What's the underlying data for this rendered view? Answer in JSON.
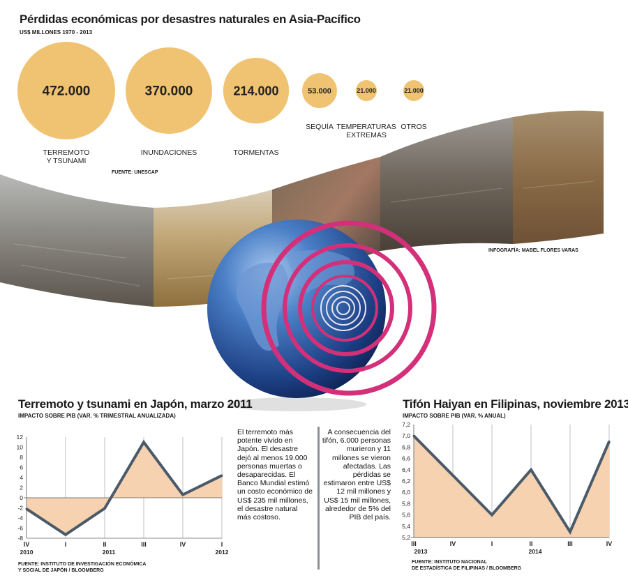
{
  "header": {
    "title": "Pérdidas económicas por desastres naturales en Asia-Pacífico",
    "subtitle": "US$ MILLONES 1970 - 2013",
    "source": "FUENTE: UNESCAP",
    "credit": "INFOGRAFÍA: MABEL FLORES VARAS"
  },
  "colors": {
    "bubble": "#f0c372",
    "fill": "#f7d2b1",
    "line": "#4b5a68",
    "ring": "#d4307a",
    "globe": "#2c5fa8"
  },
  "bubbles": [
    {
      "value": "472.000",
      "label_lines": [
        "TERREMOTO",
        "Y TSUNAMI"
      ]
    },
    {
      "value": "370.000",
      "label_lines": [
        "INUNDACIONES"
      ]
    },
    {
      "value": "214.000",
      "label_lines": [
        "TORMENTAS"
      ]
    },
    {
      "value": "53.000",
      "label_lines": [
        "SEQUÍA"
      ]
    },
    {
      "value": "21.000",
      "label_lines": [
        "TEMPERATURAS",
        "EXTREMAS"
      ]
    },
    {
      "value": "21.000",
      "label_lines": [
        "OTROS"
      ]
    }
  ],
  "japan": {
    "title": "Terremoto y tsunami en Japón, marzo 2011",
    "subtitle": "IMPACTO SOBRE PIB (VAR. % TRIMESTRAL ANUALIZADA)",
    "source_lines": [
      "FUENTE: INSTITUTO DE INVESTIGACIÓN ECONÓMICA",
      "Y SOCIAL DE JAPÓN / BLOOMBERG"
    ],
    "text": "El terremoto más potente vivido en Japón. El desastre dejó al menos 19.000 personas muertas o desaparecidas. El Banco Mundial estimó un costo económico de US$ 235 mil millones, el desastre natural más costoso."
  },
  "philippines": {
    "title": "Tifón Haiyan en Filipinas, noviembre 2013",
    "subtitle": "IMPACTO SOBRE PIB (VAR. % ANUAL)",
    "source_lines": [
      "FUENTE: INSTITUTO NACIONAL",
      "DE ESTADÍSTICA DE FILIPINAS / BLOOMBERG"
    ],
    "text": "A consecuencia del tifón, 6.000 personas murieron y 11 millones se vieron afectadas. Las pérdidas se estimaron entre US$ 12 mil millones y US$ 15 mil millones, alrededor de 5% del PIB del país."
  },
  "chart_data": [
    {
      "type": "bubble",
      "title": "Pérdidas económicas por desastres naturales en Asia-Pacífico",
      "subtitle": "US$ MILLONES 1970 - 2013",
      "categories": [
        "TERREMOTO Y TSUNAMI",
        "INUNDACIONES",
        "TORMENTAS",
        "SEQUÍA",
        "TEMPERATURAS EXTREMAS",
        "OTROS"
      ],
      "values": [
        472000,
        370000,
        214000,
        53000,
        21000,
        21000
      ]
    },
    {
      "type": "area",
      "title": "Terremoto y tsunami en Japón, marzo 2011",
      "subtitle": "IMPACTO SOBRE PIB (VAR. % TRIMESTRAL ANUALIZADA)",
      "x": [
        "IV",
        "I",
        "II",
        "III",
        "IV",
        "I"
      ],
      "year_labels": [
        "2010",
        "2011",
        "2012"
      ],
      "values": [
        -2.2,
        -7.3,
        -2.1,
        11.0,
        0.6,
        4.4
      ],
      "ylim": [
        -8,
        12
      ],
      "yticks": [
        -8,
        -6,
        -4,
        -2,
        0,
        2,
        4,
        6,
        8,
        10,
        12
      ],
      "grid": "vertical"
    },
    {
      "type": "area",
      "title": "Tifón Haiyan en Filipinas, noviembre 2013",
      "subtitle": "IMPACTO SOBRE PIB (VAR. % ANUAL)",
      "x": [
        "III",
        "IV",
        "I",
        "II",
        "III",
        "IV"
      ],
      "year_labels": [
        "2013",
        "2014"
      ],
      "values": [
        7.0,
        6.3,
        5.6,
        6.4,
        5.3,
        6.9
      ],
      "ylim": [
        5.2,
        7.2
      ],
      "yticks": [
        "5,2",
        "5,4",
        "5,6",
        "5,8",
        "6,0",
        "6,2",
        "6,4",
        "6,6",
        "6,8",
        "7,0",
        "7,2"
      ],
      "grid": "vertical"
    }
  ]
}
